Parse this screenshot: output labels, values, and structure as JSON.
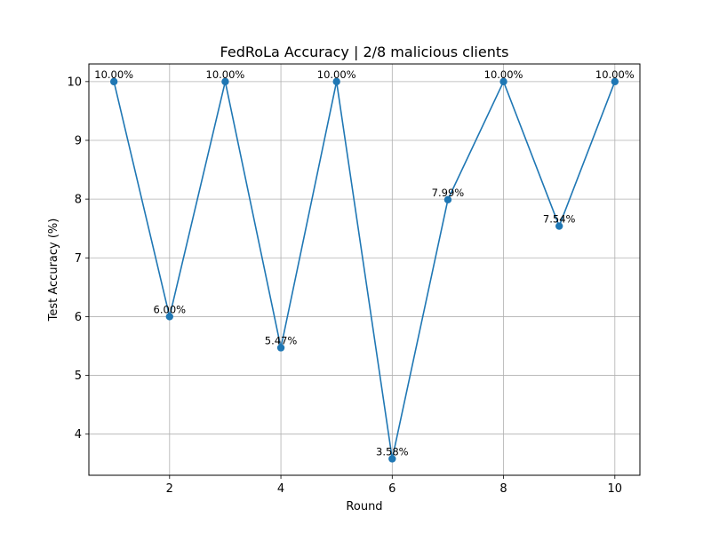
{
  "chart_data": {
    "type": "line",
    "title": "FedRoLa Accuracy | 2/8 malicious clients",
    "xlabel": "Round",
    "ylabel": "Test Accuracy (%)",
    "x": [
      1,
      2,
      3,
      4,
      5,
      6,
      7,
      8,
      9,
      10
    ],
    "series": [
      {
        "values": [
          10.0,
          6.0,
          10.0,
          5.47,
          10.0,
          3.58,
          7.99,
          10.0,
          7.54,
          10.0
        ],
        "color": "#1f77b4"
      }
    ],
    "data_labels": [
      "10.00%",
      "6.00%",
      "10.00%",
      "5.47%",
      "10.00%",
      "3.58%",
      "7.99%",
      "10.00%",
      "7.54%",
      "10.00%"
    ],
    "xticks": [
      2,
      4,
      6,
      8,
      10
    ],
    "yticks": [
      4,
      5,
      6,
      7,
      8,
      9,
      10
    ],
    "xlim": [
      0.55,
      10.45
    ],
    "ylim": [
      3.3,
      10.3
    ],
    "grid": true,
    "legend": false,
    "marker": "circle"
  }
}
